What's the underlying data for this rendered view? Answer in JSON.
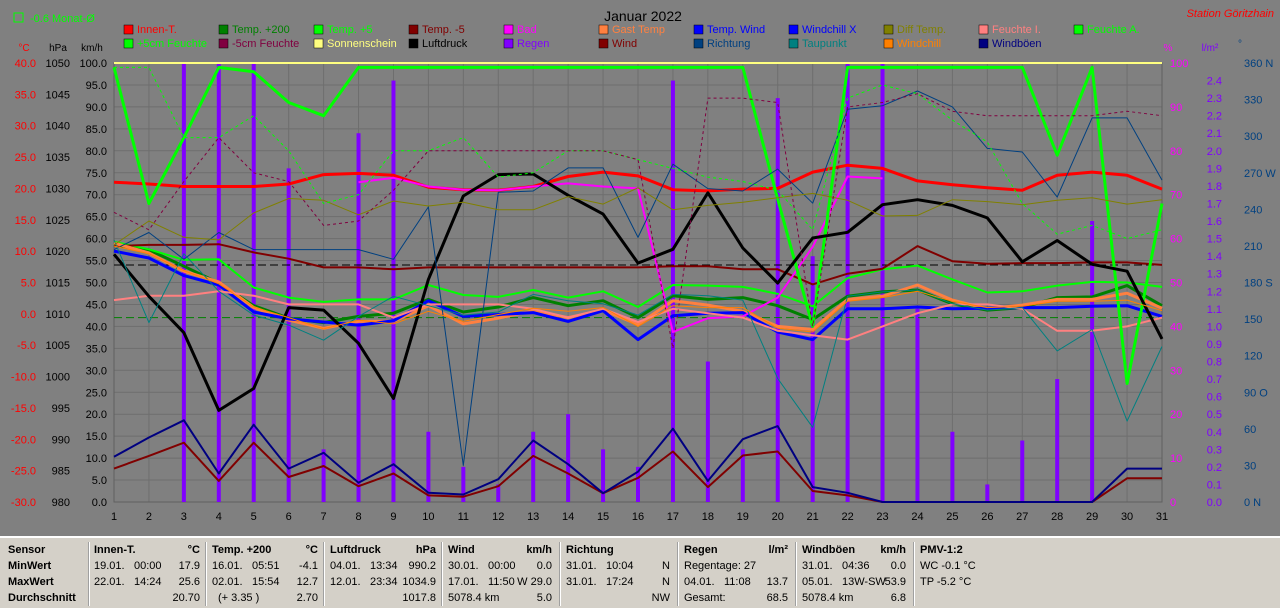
{
  "header": {
    "title": "Januar 2022",
    "station": "Station Göritzhain",
    "month_avg": "-0.6 Monat-Ø"
  },
  "axis_units": {
    "temp": "°C",
    "pressure": "hPa",
    "wind": "km/h",
    "humidity": "%",
    "rain": "l/m²",
    "direction": "°"
  },
  "legend": [
    {
      "label": "Innen-T.",
      "color": "#ff0000"
    },
    {
      "label": "Temp. +200",
      "color": "#008000"
    },
    {
      "label": "Temp. +5",
      "color": "#00ff00"
    },
    {
      "label": "Temp. -5",
      "color": "#800000"
    },
    {
      "label": "Bad",
      "color": "#ff00ff"
    },
    {
      "label": "Gast Temp",
      "color": "#ff8040"
    },
    {
      "label": "Temp. Wind",
      "color": "#0000ff"
    },
    {
      "label": "Windchill X",
      "color": "#0000ff"
    },
    {
      "label": "Diff Temp.",
      "color": "#808000"
    },
    {
      "label": "Feuchte I.",
      "color": "#ff8080"
    },
    {
      "label": "Feuchte A.",
      "color": "#00ff00"
    },
    {
      "label": "+5cm Feuchte",
      "color": "#00ff00"
    },
    {
      "label": "-5cm Feuchte",
      "color": "#800040"
    },
    {
      "label": "Sonnenschein",
      "color": "#ffff80"
    },
    {
      "label": "Luftdruck",
      "color": "#000000"
    },
    {
      "label": "Regen",
      "color": "#8000ff"
    },
    {
      "label": "Wind",
      "color": "#800000"
    },
    {
      "label": "Richtung",
      "color": "#004080"
    },
    {
      "label": "Taupunkt",
      "color": "#008080"
    },
    {
      "label": "Windchill",
      "color": "#ff8000"
    },
    {
      "label": "Windböen",
      "color": "#000080"
    }
  ],
  "chart_data": {
    "type": "line",
    "title": "Januar 2022",
    "x": [
      1,
      2,
      3,
      4,
      5,
      6,
      7,
      8,
      9,
      10,
      11,
      12,
      13,
      14,
      15,
      16,
      17,
      18,
      19,
      20,
      21,
      22,
      23,
      24,
      25,
      26,
      27,
      28,
      29,
      30,
      31
    ],
    "xlim": [
      1,
      31
    ],
    "grid": true,
    "legend_position": "top",
    "axes": {
      "temp": {
        "label": "°C",
        "min": -30,
        "max": 40,
        "ticks": [
          40,
          35,
          30,
          25,
          20,
          15,
          10,
          5,
          0,
          -5,
          -10,
          -15,
          -20,
          -25,
          -30
        ]
      },
      "pressure": {
        "label": "hPa",
        "min": 980,
        "max": 1050,
        "ticks": [
          1050,
          1045,
          1040,
          1035,
          1030,
          1025,
          1020,
          1015,
          1010,
          1005,
          1000,
          995,
          990,
          985,
          980
        ]
      },
      "wind": {
        "label": "km/h",
        "min": 0,
        "max": 100,
        "ticks": [
          100,
          95,
          90,
          85,
          80,
          75,
          70,
          65,
          60,
          55,
          50,
          45,
          40,
          35,
          30,
          25,
          20,
          15,
          10,
          5,
          0
        ]
      },
      "humidity": {
        "label": "%",
        "min": 0,
        "max": 100,
        "ticks": [
          100,
          90,
          80,
          70,
          60,
          50,
          40,
          30,
          20,
          10,
          0
        ]
      },
      "rain": {
        "label": "l/m²",
        "min": 0,
        "max": 2.5,
        "ticks": [
          2.4,
          2.3,
          2.2,
          2.1,
          2.0,
          1.9,
          1.8,
          1.7,
          1.6,
          1.5,
          1.4,
          1.3,
          1.2,
          1.1,
          1.0,
          0.9,
          0.8,
          0.7,
          0.6,
          0.5,
          0.4,
          0.3,
          0.2,
          0.1,
          0.0
        ]
      },
      "direction": {
        "label": "°",
        "min": 0,
        "max": 360,
        "ticks": [
          "360 N",
          "330",
          "300",
          "270 W",
          "240",
          "210",
          "180 S",
          "150",
          "120",
          "90 O",
          "60",
          "30",
          "0 N"
        ]
      }
    },
    "series": [
      {
        "name": "Innen-T.",
        "axis": "temp",
        "color": "#ff0000",
        "width": 3,
        "values": [
          21.0,
          20.7,
          20.3,
          20.3,
          20.3,
          20.7,
          22.2,
          22.4,
          22.1,
          20.2,
          19.8,
          19.7,
          20.3,
          21.9,
          22.6,
          22.0,
          19.8,
          19.6,
          19.9,
          20.0,
          22.6,
          23.7,
          23.2,
          21.2,
          20.6,
          20.1,
          19.7,
          22.1,
          22.6,
          22.1,
          19.9
        ]
      },
      {
        "name": "Temp. +200",
        "axis": "temp",
        "color": "#008000",
        "width": 3,
        "values": [
          11.0,
          10.2,
          7.6,
          4.9,
          1.3,
          -0.7,
          -1.4,
          -0.4,
          0.1,
          2.3,
          0.3,
          1.1,
          2.6,
          1.3,
          2.1,
          -0.6,
          2.9,
          2.3,
          2.6,
          1.3,
          -0.9,
          2.8,
          3.5,
          3.8,
          1.6,
          0.6,
          1.0,
          2.6,
          2.7,
          4.5,
          1.3
        ]
      },
      {
        "name": "Temp. +5",
        "axis": "temp",
        "color": "#00ff00",
        "width": 2,
        "values": [
          11.5,
          10.3,
          8.6,
          8.7,
          4.2,
          2.6,
          1.9,
          2.3,
          2.3,
          4.6,
          3.0,
          2.7,
          3.8,
          2.6,
          3.6,
          1.1,
          4.6,
          4.5,
          4.3,
          3.2,
          1.2,
          5.7,
          7.1,
          7.7,
          5.5,
          3.4,
          3.6,
          4.5,
          5.1,
          5.0,
          4.3
        ]
      },
      {
        "name": "Temp. -5",
        "axis": "temp",
        "color": "#800000",
        "width": 2,
        "values": [
          10.8,
          11.0,
          11.0,
          11.1,
          9.8,
          8.8,
          7.4,
          7.4,
          7.1,
          7.4,
          7.4,
          7.4,
          7.4,
          7.4,
          7.4,
          7.4,
          7.6,
          7.6,
          7.1,
          7.1,
          4.7,
          6.4,
          7.2,
          10.8,
          8.4,
          8.0,
          8.1,
          8.1,
          8.2,
          8.2,
          7.8
        ]
      },
      {
        "name": "Gast Temp",
        "axis": "temp",
        "color": "#ff8040",
        "width": 3,
        "values": [
          11.3,
          9.7,
          6.8,
          5.1,
          1.0,
          -1.0,
          -2.3,
          -1.2,
          -1.2,
          1.3,
          -1.6,
          -0.7,
          0.5,
          -0.6,
          0.6,
          -1.7,
          2.1,
          1.4,
          0.4,
          -2.0,
          -2.5,
          2.3,
          2.8,
          4.6,
          2.2,
          0.8,
          1.4,
          2.3,
          2.3,
          3.3,
          0.9
        ]
      },
      {
        "name": "Temp. Wind",
        "axis": "temp",
        "color": "#0000ff",
        "width": 3,
        "values": [
          10.0,
          8.9,
          6.1,
          4.6,
          0.3,
          -0.8,
          -1.3,
          -1.8,
          -1.1,
          2.1,
          -0.4,
          -0.1,
          0.2,
          -1.2,
          0.5,
          -4.1,
          -0.3,
          0.1,
          0.2,
          -2.9,
          -4.1,
          0.8,
          0.8,
          1.1,
          0.8,
          0.9,
          1.0,
          1.0,
          1.2,
          1.3,
          -0.4
        ]
      },
      {
        "name": "Bad",
        "axis": "temp",
        "color": "#ff00ff",
        "width": 2,
        "values": [
          null,
          null,
          null,
          null,
          null,
          null,
          null,
          21.0,
          21.7,
          20.3,
          19.8,
          19.7,
          20.3,
          20.8,
          20.3,
          20.0,
          -2.9,
          -0.7,
          -0.4,
          2.6,
          10.7,
          21.9,
          21.6,
          null,
          null,
          null,
          null,
          null,
          null,
          null,
          null
        ]
      },
      {
        "name": "Feuchte I.",
        "axis": "humidity",
        "color": "#ff8080",
        "width": 2,
        "values": [
          46,
          47,
          47,
          48,
          47,
          45,
          45,
          45,
          42,
          45,
          45,
          45,
          44,
          42,
          44,
          41,
          44,
          43,
          42,
          39,
          38,
          37,
          40,
          43,
          45,
          45,
          44,
          39,
          39,
          40,
          42
        ]
      },
      {
        "name": "Feuchte A.",
        "axis": "humidity",
        "color": "#00ff00",
        "width": 3,
        "values": [
          99,
          68,
          83,
          99,
          98,
          91,
          88,
          99,
          99,
          99,
          99,
          99,
          99,
          99,
          99,
          99,
          99,
          99,
          99,
          69,
          40,
          99,
          99,
          99,
          99,
          99,
          99,
          79,
          99,
          27,
          68
        ]
      },
      {
        "name": "Sonnenschein",
        "axis": "humidity",
        "color": "#ffff80",
        "width": 2,
        "values": [
          100,
          100,
          100,
          100,
          100,
          100,
          100,
          100,
          100,
          100,
          100,
          100,
          100,
          100,
          100,
          100,
          100,
          100,
          100,
          100,
          100,
          100,
          100,
          100,
          100,
          100,
          100,
          100,
          100,
          100,
          100
        ]
      },
      {
        "name": "Luftdruck",
        "axis": "pressure",
        "color": "#000000",
        "width": 3,
        "values": [
          1019.5,
          1012.8,
          1007.0,
          994.6,
          998.1,
          1011.0,
          1010.6,
          1005.3,
          996.5,
          1015.5,
          1028.8,
          1032.2,
          1032.3,
          1028.9,
          1025.9,
          1018.1,
          1020.3,
          1029.3,
          1020.5,
          1014.9,
          1022.1,
          1023.0,
          1027.4,
          1028.2,
          1027.3,
          1025.3,
          1018.3,
          1021.7,
          1017.9,
          1016.8,
          1006.0
        ]
      },
      {
        "name": "Wind",
        "axis": "wind",
        "color": "#800000",
        "width": 2,
        "values": [
          7.6,
          10.5,
          13.5,
          4.8,
          13.5,
          5.7,
          8.2,
          3.6,
          6.5,
          1.5,
          1.2,
          3.6,
          10.5,
          6.5,
          2.0,
          5.5,
          11.5,
          3.4,
          10.6,
          11.5,
          2.5,
          1.5,
          0,
          0,
          0,
          0,
          0,
          0,
          0,
          5.4,
          5.4
        ]
      },
      {
        "name": "Windböen",
        "axis": "wind",
        "color": "#000080",
        "width": 2,
        "values": [
          10.3,
          14.7,
          18.6,
          6.5,
          17.6,
          7.6,
          11.2,
          4.4,
          8.6,
          2.1,
          1.7,
          5.2,
          14.0,
          8.6,
          2.0,
          6.9,
          16.7,
          4.8,
          14.3,
          17.3,
          3.4,
          2.1,
          0,
          0,
          0,
          0,
          0,
          0,
          0,
          7.6,
          7.6
        ]
      },
      {
        "name": "Richtung",
        "axis": "direction",
        "color": "#004080",
        "width": 1,
        "values": [
          207,
          221,
          199,
          221,
          207,
          207,
          207,
          207,
          199,
          242,
          30,
          254,
          255,
          274,
          274,
          217,
          277,
          257,
          255,
          273,
          245,
          322,
          325,
          337,
          324,
          290,
          287,
          250,
          315,
          315,
          264
        ]
      },
      {
        "name": "Taupunkt",
        "axis": "temp",
        "color": "#008080",
        "width": 1,
        "values": [
          11.8,
          -1.4,
          9.6,
          3.6,
          -0.2,
          -1.8,
          -4.2,
          -0.4,
          2.8,
          1.3,
          -0.2,
          0.3,
          3.1,
          2.1,
          1.6,
          -0.2,
          3.1,
          2.9,
          2.2,
          -10.3,
          -18.1,
          2.8,
          3.5,
          3.8,
          1.6,
          0.6,
          1.0,
          -5.9,
          -2.5,
          -17.1,
          -5.2
        ]
      },
      {
        "name": "Diff Temp.",
        "axis": "temp",
        "color": "#808000",
        "width": 1,
        "dashed": false,
        "values": [
          11.0,
          14.8,
          12.2,
          11.8,
          16.1,
          18.4,
          18.1,
          15.8,
          18.0,
          17.2,
          17.8,
          16.6,
          16.6,
          18.7,
          17.5,
          20.1,
          16.6,
          17.3,
          17.8,
          18.5,
          19.2,
          18.1,
          15.6,
          15.7,
          18.2,
          17.9,
          17.4,
          18.1,
          18.5,
          17.5,
          18.2
        ]
      },
      {
        "name": "+5cm Feuchte",
        "axis": "humidity",
        "color": "#00ff00",
        "width": 1,
        "dashed": true,
        "values": [
          99,
          99,
          83,
          83,
          88,
          80,
          68,
          70,
          80,
          80,
          83,
          74,
          75,
          80,
          80,
          78,
          76,
          74,
          73,
          71,
          62,
          92,
          95,
          93,
          87,
          82,
          68,
          61,
          63,
          60,
          62
        ]
      },
      {
        "name": "-5cm Feuchte",
        "axis": "humidity",
        "color": "#800040",
        "width": 1,
        "dashed": true,
        "values": [
          66,
          62,
          73,
          83,
          75,
          73,
          63,
          64,
          71,
          80,
          80,
          80,
          80,
          80,
          80,
          78,
          35,
          92,
          92,
          91,
          40,
          90,
          91,
          93,
          89,
          88,
          88,
          88,
          88,
          89,
          88
        ]
      },
      {
        "name": "Windchill",
        "axis": "temp",
        "color": "#ff8000",
        "width": 1,
        "values": [
          10.8,
          9.6,
          6.9,
          4.8,
          1.1,
          -0.6,
          -2.4,
          -1.0,
          -1.6,
          0.4,
          -1.2,
          -0.1,
          0.9,
          0.4,
          1.0,
          -2.0,
          1.3,
          1.0,
          1.0,
          -2.3,
          -2.9,
          2.0,
          2.6,
          3.6,
          2.0,
          1.0,
          1.2,
          2.0,
          2.0,
          2.2,
          0.5
        ]
      },
      {
        "name": "Regen",
        "axis": "rain",
        "color": "#8000ff",
        "type": "bar",
        "values": [
          0,
          0,
          2.5,
          2.5,
          2.5,
          1.9,
          0.3,
          2.1,
          2.4,
          0.4,
          0.2,
          0.1,
          0.4,
          0.5,
          0.3,
          0.2,
          2.4,
          0.8,
          0.3,
          2.3,
          1.4,
          2.5,
          2.5,
          1.1,
          0.4,
          0.1,
          0.35,
          0.7,
          1.6,
          0,
          0
        ]
      }
    ],
    "reference_lines": [
      {
        "axis": "temp",
        "value": 7.8,
        "color": "#000000",
        "dashed": true
      },
      {
        "axis": "temp",
        "value": -0.6,
        "color": "#008000",
        "dashed": true
      }
    ]
  },
  "stats": {
    "sensor": {
      "title": "Sensor",
      "rows": [
        "MinWert",
        "MaxWert",
        "Durchschnitt"
      ]
    },
    "innen": {
      "title": "Innen-T.",
      "unit": "°C",
      "min_date": "19.01.",
      "min_time": "00:00",
      "min_val": "17.9",
      "max_date": "22.01.",
      "max_time": "14:24",
      "max_val": "25.6",
      "avg": "20.70"
    },
    "temp200": {
      "title": "Temp. +200",
      "unit": "°C",
      "min_date": "16.01.",
      "min_time": "05:51",
      "min_val": "-4.1",
      "max_date": "02.01.",
      "max_time": "15:54",
      "max_val": "12.7",
      "avg_note": "(+ 3.35 )",
      "avg": "2.70"
    },
    "luftdruck": {
      "title": "Luftdruck",
      "unit": "hPa",
      "min_date": "04.01.",
      "min_time": "13:34",
      "min_val": "990.2",
      "max_date": "12.01.",
      "max_time": "23:34",
      "max_val": "1034.9",
      "avg": "1017.8"
    },
    "wind": {
      "title": "Wind",
      "unit": "km/h",
      "min_date": "30.01.",
      "min_time": "00:00",
      "min_val": "0.0",
      "max_date": "17.01.",
      "max_time": "11:50",
      "max_val": "W 29.0",
      "avg_note": "5078.4 km",
      "avg": "5.0"
    },
    "richtung": {
      "title": "Richtung",
      "min_date": "31.01.",
      "min_time": "10:04",
      "min_val": "N",
      "max_date": "31.01.",
      "max_time": "17:24",
      "max_val": "N",
      "avg": "NW"
    },
    "regen": {
      "title": "Regen",
      "unit": "l/m²",
      "row1": "Regentage: 27",
      "max_date": "04.01.",
      "max_time": "11:08",
      "max_val": "13.7",
      "avg_label": "Gesamt:",
      "avg": "68.5"
    },
    "windboeen": {
      "title": "Windböen",
      "unit": "km/h",
      "min_date": "31.01.",
      "min_time": "04:36",
      "min_val": "0.0",
      "max_date": "05.01.",
      "max_time": "13W-SW",
      "max_val": "53.9",
      "avg_note": "5078.4 km",
      "avg": "6.8"
    },
    "pmv": {
      "title": "PMV-1:2",
      "row1": "WC -0.1 °C",
      "row2": "TP -5.2 °C"
    }
  }
}
